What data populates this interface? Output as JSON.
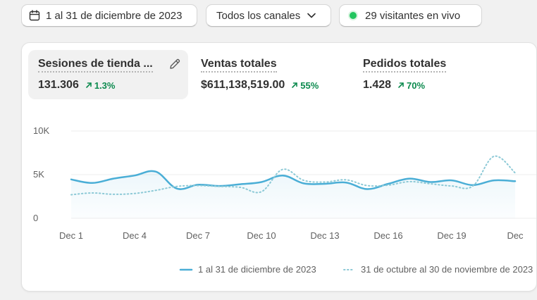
{
  "filters": {
    "date_range": "1 al 31 de diciembre de 2023",
    "channels": "Todos los canales",
    "live_visitors": "29 visitantes en vivo"
  },
  "metrics": [
    {
      "title": "Sesiones de tienda ...",
      "value": "131.306",
      "change": "1.3%"
    },
    {
      "title": "Ventas totales",
      "value": "$611,138,519.00",
      "change": "55%"
    },
    {
      "title": "Pedidos totales",
      "value": "1.428",
      "change": "70%"
    }
  ],
  "colors": {
    "current": "#4aaed6",
    "previous": "#8cc9d6",
    "positive": "#0c8a4e",
    "live": "#22c55e"
  },
  "chart_data": {
    "type": "line",
    "y_ticks": [
      "10K",
      "5K",
      "0"
    ],
    "x_ticks": [
      "Dec 1",
      "Dec 4",
      "Dec 7",
      "Dec 10",
      "Dec 13",
      "Dec 16",
      "Dec 19",
      "Dec"
    ],
    "ylim": [
      0,
      10000
    ],
    "grid": true,
    "legend_position": "bottom",
    "series": [
      {
        "name": "1 al 31 de diciembre de 2023",
        "style": "solid",
        "x": [
          1,
          2,
          3,
          4,
          5,
          6,
          7,
          8,
          9,
          10,
          11,
          12,
          13,
          14,
          15,
          16,
          17,
          18,
          19,
          20,
          21,
          22
        ],
        "values": [
          4450,
          4050,
          4550,
          4900,
          5350,
          3400,
          3850,
          3700,
          3900,
          4150,
          4900,
          4000,
          3950,
          4100,
          3350,
          3950,
          4550,
          4150,
          4350,
          3800,
          4350,
          4250
        ]
      },
      {
        "name": "31 de octubre al 30 de noviembre de 2023",
        "style": "dotted",
        "x": [
          1,
          2,
          3,
          4,
          5,
          6,
          7,
          8,
          9,
          10,
          11,
          12,
          13,
          14,
          15,
          16,
          17,
          18,
          19,
          20,
          21,
          22
        ],
        "values": [
          2700,
          2900,
          2750,
          2850,
          3200,
          3650,
          3750,
          3650,
          3550,
          3050,
          5600,
          4350,
          4150,
          4400,
          3750,
          3800,
          4200,
          3950,
          3700,
          3700,
          7100,
          5200
        ]
      }
    ]
  }
}
